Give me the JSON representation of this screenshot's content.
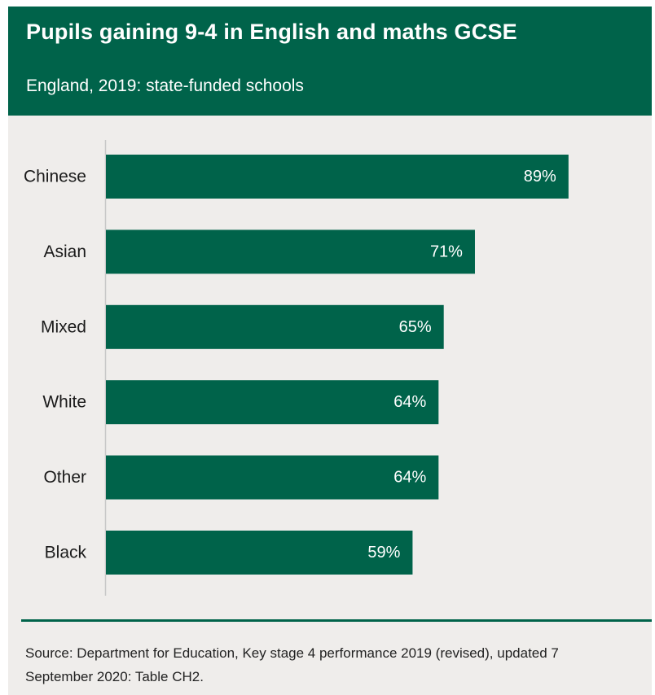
{
  "header": {
    "title": "Pupils gaining 9-4 in English and maths GCSE",
    "subtitle": "England, 2019: state-funded schools"
  },
  "colors": {
    "header_bg": "#00634a",
    "bar": "#00634a",
    "background": "#efedeb",
    "axis": "#c8c8c8"
  },
  "chart_data": {
    "type": "bar",
    "orientation": "horizontal",
    "categories": [
      "Chinese",
      "Asian",
      "Mixed",
      "White",
      "Other",
      "Black"
    ],
    "values": [
      89,
      71,
      65,
      64,
      64,
      59
    ],
    "data_labels": [
      "89%",
      "71%",
      "65%",
      "64%",
      "64%",
      "59%"
    ],
    "xlim": [
      0,
      100
    ],
    "grid": false,
    "legend": "none"
  },
  "footer": {
    "source": "Source: Department for Education, Key stage 4 performance 2019 (revised), updated 7 September 2020: Table CH2."
  }
}
